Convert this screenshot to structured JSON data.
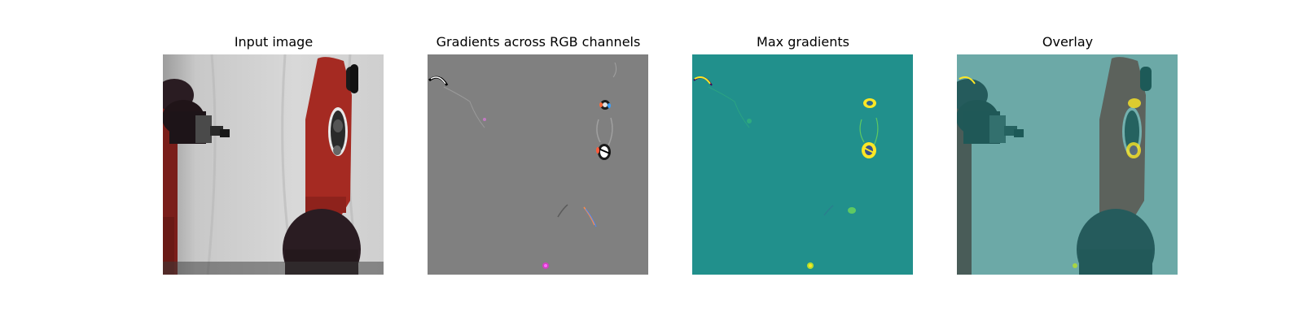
{
  "figure": {
    "panels": [
      {
        "title": "Input image",
        "kind": "photo"
      },
      {
        "title": "Gradients across RGB channels",
        "kind": "rgb-gradient-map"
      },
      {
        "title": "Max gradients",
        "kind": "max-gradient-heatmap"
      },
      {
        "title": "Overlay",
        "kind": "overlay"
      }
    ]
  },
  "colors": {
    "backdrop": "#d2d2d2",
    "robot_red": "#a52a22",
    "robot_dark": "#2a1c22",
    "gradient_bg": "#808080",
    "max_gradient_bg": "#21908c",
    "highlight": "#fde725",
    "overlay_tint": "#3f8f8a"
  }
}
